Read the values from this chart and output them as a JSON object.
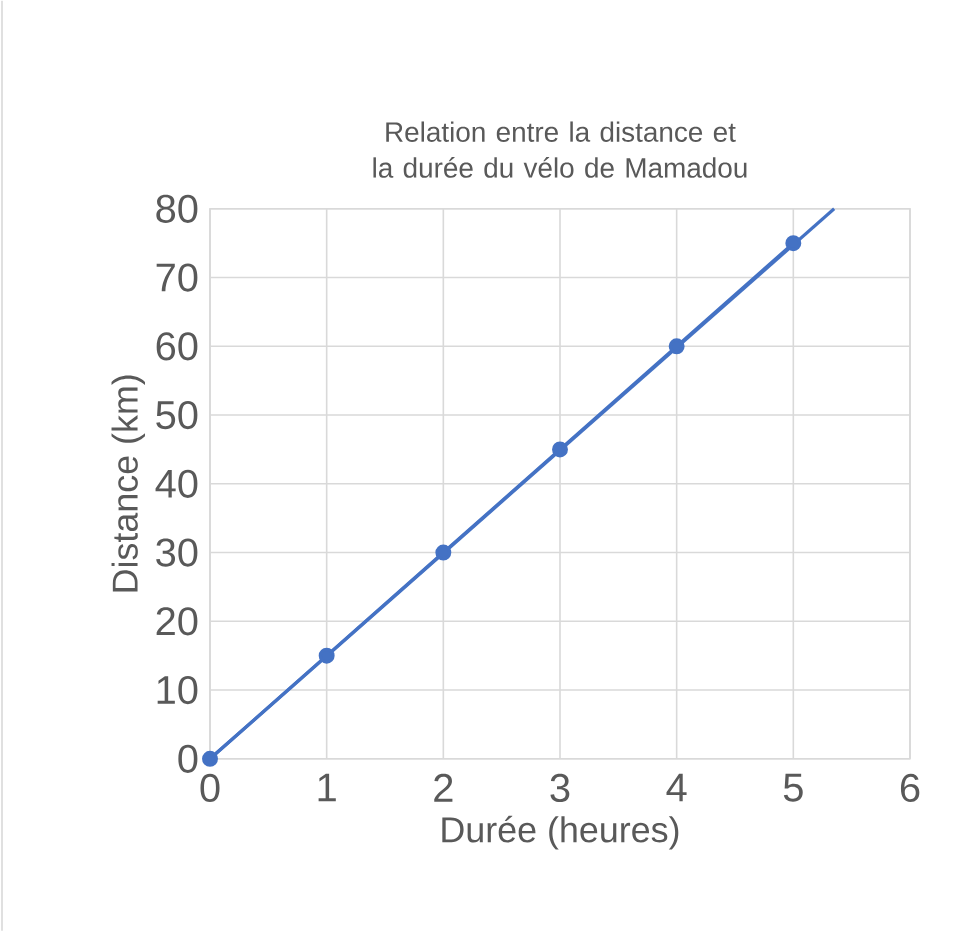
{
  "chart_data": {
    "type": "line",
    "title": "Relation entre la distance et la durée du vélo de Mamadou",
    "xlabel": "Durée (heures)",
    "ylabel": "Distance (km)",
    "series": [
      {
        "color": "#4472c4",
        "x": [
          0,
          1,
          2,
          3,
          4,
          5
        ],
        "values": [
          0,
          15,
          30,
          45,
          60,
          75
        ],
        "marker": "circle"
      },
      {
        "color": "#4472c4",
        "x": [
          0,
          5.35
        ],
        "values": [
          0,
          80
        ],
        "marker": "none"
      }
    ],
    "xlim": [
      0,
      6
    ],
    "xticks": [
      0,
      1,
      2,
      3,
      4,
      5,
      6
    ],
    "ylim": [
      0,
      80
    ],
    "yticks": [
      0,
      10,
      20,
      30,
      40,
      50,
      60,
      70,
      80
    ],
    "grid": true
  }
}
